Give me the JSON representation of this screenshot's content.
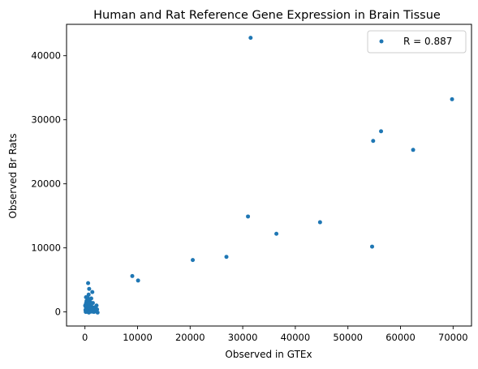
{
  "chart_data": {
    "type": "scatter",
    "title": "Human and Rat Reference Gene Expression in Brain Tissue",
    "xlabel": "Observed in GTEx",
    "ylabel": "Observed Br Rats",
    "xlim": [
      -3500,
      73500
    ],
    "ylim": [
      -2200,
      44900
    ],
    "xticks": [
      0,
      10000,
      20000,
      30000,
      40000,
      50000,
      60000,
      70000
    ],
    "yticks": [
      0,
      10000,
      20000,
      30000,
      40000
    ],
    "legend": {
      "placement": "upper-right",
      "label": "R = 0.887"
    },
    "series": [
      {
        "name": "R = 0.887",
        "color": "#1f77b4",
        "points": [
          [
            31500,
            42800
          ],
          [
            69800,
            33200
          ],
          [
            56300,
            28200
          ],
          [
            54800,
            26700
          ],
          [
            62400,
            25300
          ],
          [
            31000,
            14900
          ],
          [
            44700,
            14000
          ],
          [
            36400,
            12200
          ],
          [
            54600,
            10200
          ],
          [
            26900,
            8600
          ],
          [
            20500,
            8100
          ],
          [
            9000,
            5600
          ],
          [
            10100,
            4900
          ],
          [
            600,
            4500
          ],
          [
            800,
            3600
          ],
          [
            1400,
            3100
          ],
          [
            700,
            2700
          ],
          [
            200,
            2300
          ],
          [
            500,
            2200
          ],
          [
            1200,
            2100
          ],
          [
            900,
            1900
          ],
          [
            300,
            1700
          ],
          [
            600,
            1600
          ],
          [
            1000,
            1500
          ],
          [
            1500,
            1400
          ],
          [
            200,
            1300
          ],
          [
            400,
            1200
          ],
          [
            800,
            1100
          ],
          [
            2200,
            1000
          ],
          [
            100,
            900
          ],
          [
            500,
            900
          ],
          [
            1300,
            800
          ],
          [
            1800,
            700
          ],
          [
            300,
            700
          ],
          [
            700,
            600
          ],
          [
            1000,
            500
          ],
          [
            2300,
            400
          ],
          [
            200,
            500
          ],
          [
            400,
            400
          ],
          [
            600,
            300
          ],
          [
            900,
            300
          ],
          [
            1200,
            200
          ],
          [
            1600,
            200
          ],
          [
            2000,
            100
          ],
          [
            100,
            300
          ],
          [
            300,
            200
          ],
          [
            500,
            100
          ],
          [
            700,
            50
          ],
          [
            900,
            100
          ],
          [
            1100,
            50
          ],
          [
            1400,
            50
          ],
          [
            1700,
            0
          ],
          [
            2400,
            -100
          ],
          [
            150,
            0
          ],
          [
            350,
            50
          ],
          [
            550,
            0
          ],
          [
            750,
            -100
          ],
          [
            50,
            1000
          ],
          [
            250,
            1400
          ],
          [
            450,
            1800
          ],
          [
            650,
            2000
          ],
          [
            850,
            1300
          ],
          [
            1050,
            900
          ],
          [
            1250,
            600
          ],
          [
            1450,
            400
          ]
        ]
      }
    ]
  }
}
